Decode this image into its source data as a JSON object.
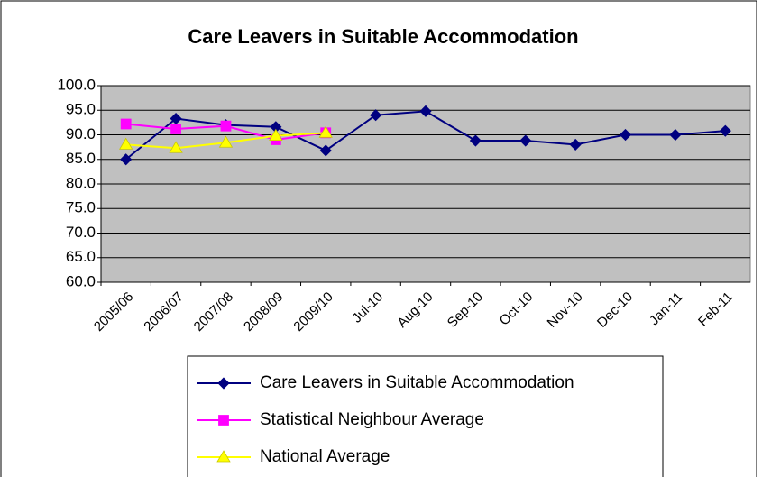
{
  "chart_data": {
    "type": "line",
    "title": "Care Leavers in Suitable Accommodation",
    "categories": [
      "2005/06",
      "2006/07",
      "2007/08",
      "2008/09",
      "2009/10",
      "Jul-10",
      "Aug-10",
      "Sep-10",
      "Oct-10",
      "Nov-10",
      "Dec-10",
      "Jan-11",
      "Feb-11"
    ],
    "series": [
      {
        "name": "Care Leavers in Suitable Accommodation",
        "color": "#000080",
        "marker": "diamond",
        "values": [
          85,
          93.3,
          92,
          91.6,
          86.8,
          94,
          94.8,
          88.8,
          88.8,
          88,
          90,
          90,
          90.8
        ]
      },
      {
        "name": "Statistical Neighbour Average",
        "color": "#ff00ff",
        "marker": "square",
        "values": [
          92.2,
          91.2,
          91.8,
          89,
          90.4,
          null,
          null,
          null,
          null,
          null,
          null,
          null,
          null
        ]
      },
      {
        "name": "National Average",
        "color": "#ffff00",
        "marker": "triangle",
        "values": [
          88,
          87.3,
          88.4,
          89.8,
          90.4,
          null,
          null,
          null,
          null,
          null,
          null,
          null,
          null
        ]
      }
    ],
    "ylim": [
      60,
      100
    ],
    "yticks": [
      {
        "value": 60,
        "label": "60.0"
      },
      {
        "value": 65,
        "label": "65.0"
      },
      {
        "value": 70,
        "label": "70.0"
      },
      {
        "value": 75,
        "label": "75.0"
      },
      {
        "value": 80,
        "label": "80.0"
      },
      {
        "value": 85,
        "label": "85.0"
      },
      {
        "value": 90,
        "label": "90.0"
      },
      {
        "value": 95,
        "label": "95.0"
      },
      {
        "value": 100,
        "label": "100.0"
      }
    ],
    "grid": true,
    "legend": "bottom"
  }
}
